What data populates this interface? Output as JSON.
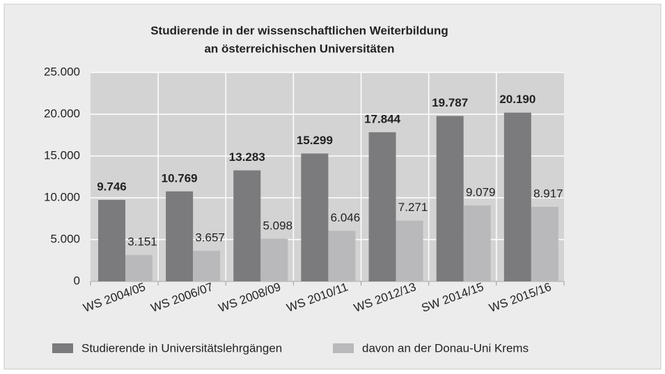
{
  "chart_data": {
    "type": "bar",
    "title": [
      "Studierende in der wissenschaftlichen Weiterbildung",
      "an österreichischen Universitäten"
    ],
    "categories": [
      "WS 2004/05",
      "WS 2006/07",
      "WS 2008/09",
      "WS 2010/11",
      "WS 2012/13",
      "SW 2014/15",
      "WS 2015/16"
    ],
    "series": [
      {
        "name": "Studierende in Universitätslehrgängen",
        "color": "#7b7b7d",
        "values": [
          9746,
          10769,
          13283,
          15299,
          17844,
          19787,
          20190
        ],
        "value_labels": [
          "9.746",
          "10.769",
          "13.283",
          "15.299",
          "17.844",
          "19.787",
          "20.190"
        ]
      },
      {
        "name": "davon an der Donau-Uni Krems",
        "color": "#b9b9bb",
        "values": [
          3151,
          3657,
          5098,
          6046,
          7271,
          9079,
          8917
        ],
        "value_labels": [
          "3.151",
          "3.657",
          "5.098",
          "6.046",
          "7.271",
          "9.079",
          "8.917"
        ]
      }
    ],
    "ylim": [
      0,
      25000
    ],
    "yticks": [
      0,
      {
        "value": 5000,
        "label": "5.000"
      },
      {
        "value": 10000,
        "label": "10.000"
      },
      {
        "value": 15000,
        "label": "15.000"
      },
      {
        "value": 20000,
        "label": "20.000"
      },
      {
        "value": 25000,
        "label": "25.000"
      }
    ],
    "grid": true,
    "legend": "bottom"
  }
}
